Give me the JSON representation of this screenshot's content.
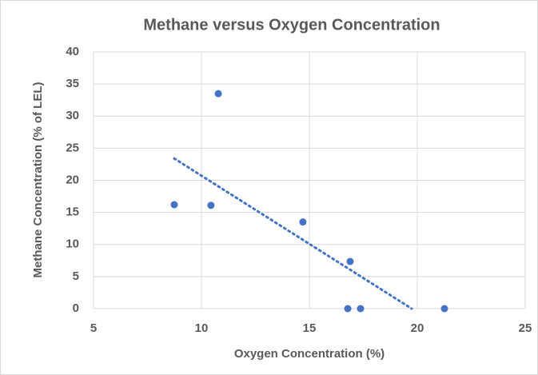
{
  "chart_data": {
    "type": "scatter",
    "title": "Methane versus Oxygen Concentration",
    "x_label": "Oxygen Concentration (%)",
    "y_label": "Methane Concentration (% of LEL)",
    "series": [
      {
        "name": "Methane",
        "color": "#4472c4",
        "x": [
          8.74,
          10.78,
          10.44,
          14.7,
          16.89,
          16.78,
          17.37,
          21.26
        ],
        "values": [
          16.2,
          33.5,
          16.1,
          13.5,
          7.35,
          0,
          0,
          0
        ]
      }
    ],
    "trendline": {
      "color": "#4472c4",
      "x": [
        8.74,
        19.74
      ],
      "values": [
        23.4,
        0
      ]
    },
    "xlim": [
      5,
      25
    ],
    "xticks": [
      5,
      10,
      15,
      20,
      25
    ],
    "ylim": [
      0,
      40
    ],
    "yticks": [
      0,
      5,
      10,
      15,
      20,
      25,
      30,
      35,
      40
    ],
    "grid": true
  }
}
